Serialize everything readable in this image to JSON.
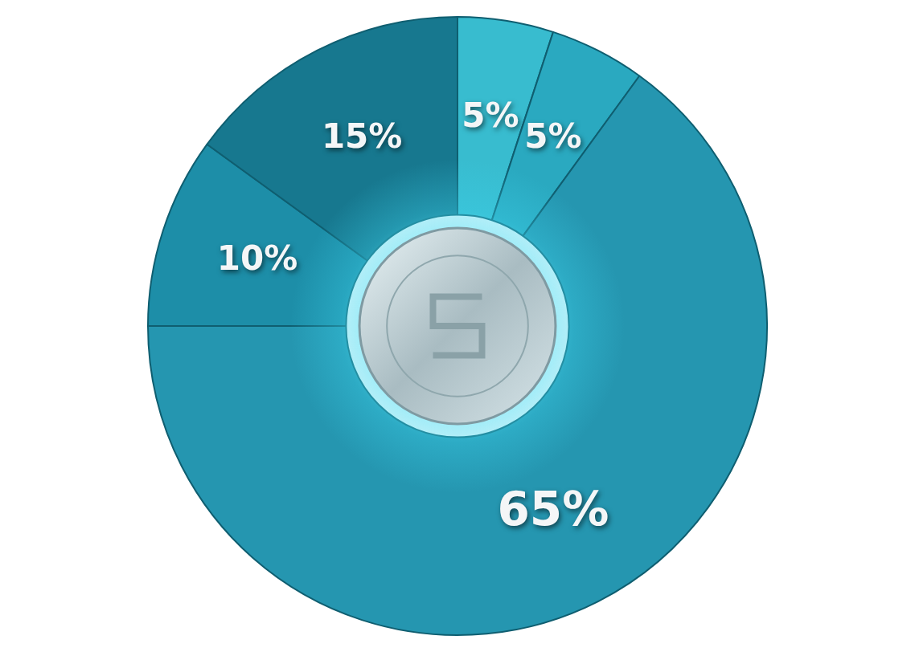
{
  "chart_data": {
    "type": "pie",
    "values": [
      10,
      15,
      5,
      5,
      65
    ],
    "value_labels": [
      "10%",
      "15%",
      "5%",
      "5%",
      "65%"
    ],
    "colors": [
      "#1d8ea8",
      "#17788f",
      "#38bccf",
      "#2aa9c0",
      "#2596b0"
    ],
    "data_labels": true
  }
}
